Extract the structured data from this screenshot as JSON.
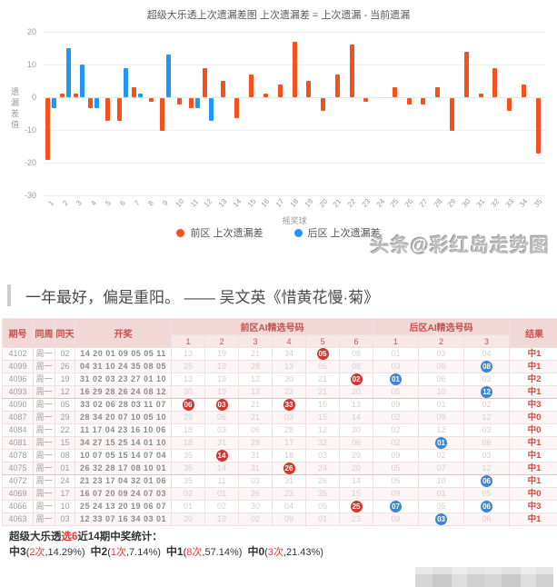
{
  "chart": {
    "title": "超级大乐透上次遗漏差图 上次遗漏差 = 上次遗漏 - 当前遗漏",
    "ylabel": "遗漏差值",
    "xlabel": "摇奖球",
    "watermark": "头条@彩红岛走势图",
    "legend": [
      {
        "label": "前区 上次遗漏差",
        "color": "#f4511e"
      },
      {
        "label": "后区 上次遗漏差",
        "color": "#2196f3"
      }
    ]
  },
  "chart_data": {
    "type": "bar",
    "title": "超级大乐透上次遗漏差图 上次遗漏差 = 上次遗漏 - 当前遗漏",
    "xlabel": "摇奖球",
    "ylabel": "遗漏差值",
    "ylim": [
      -30,
      20
    ],
    "yticks": [
      20,
      10,
      0,
      -10,
      -20,
      -30
    ],
    "grid": true,
    "legend_position": "bottom",
    "categories": [
      "1",
      "2",
      "3",
      "4",
      "5",
      "6",
      "7",
      "8",
      "9",
      "10",
      "11",
      "12",
      "13",
      "14",
      "15",
      "16",
      "17",
      "18",
      "19",
      "20",
      "21",
      "22",
      "23",
      "24",
      "25",
      "26",
      "27",
      "28",
      "29",
      "30",
      "31",
      "32",
      "33",
      "34",
      "35"
    ],
    "series": [
      {
        "name": "前区 上次遗漏差",
        "color": "#f4511e",
        "values": [
          -19,
          1,
          1,
          -3,
          -7,
          -7,
          3,
          -1,
          -10,
          -2,
          -3,
          9,
          5,
          -6,
          7,
          1,
          4,
          17,
          5,
          -4,
          7,
          16,
          -1,
          0,
          3,
          -2,
          -2,
          3,
          -10,
          14,
          1,
          9,
          -4,
          4,
          -17
        ]
      },
      {
        "name": "后区 上次遗漏差",
        "color": "#2196f3",
        "values": [
          -3,
          15,
          10,
          -3,
          0,
          9,
          1,
          0,
          13,
          0,
          -3,
          -7,
          null,
          null,
          null,
          null,
          null,
          null,
          null,
          null,
          null,
          null,
          null,
          null,
          null,
          null,
          null,
          null,
          null,
          null,
          null,
          null,
          null,
          null,
          null
        ]
      }
    ]
  },
  "quote": {
    "text": "一年最好，偏是重阳。 —— 吴文英《惜黄花慢·菊》"
  },
  "table": {
    "headers": {
      "qihao": "期号",
      "tongzhou": "同周",
      "tongtian": "同天",
      "kaijiang": "开奖",
      "front_group": "前区AI精选号码",
      "back_group": "后区AI精选号码",
      "result": "结果",
      "front_cols": [
        "1",
        "2",
        "3",
        "4",
        "5",
        "6"
      ],
      "back_cols": [
        "1",
        "2",
        "3"
      ]
    },
    "rows": [
      {
        "qihao": "4102",
        "week": "周一",
        "day": "02",
        "draw": "14 20 01 09 05 05 11",
        "front": [
          "13",
          "19",
          "21",
          "34",
          {
            "v": "05",
            "hit": "front"
          },
          "08"
        ],
        "back": [
          "01",
          "03",
          "04"
        ],
        "result": "中1"
      },
      {
        "qihao": "4099",
        "week": "周一",
        "day": "26",
        "draw": "04 31 10 24 35 08 05",
        "front": [
          "25",
          "19",
          "28",
          "13",
          "05",
          "08"
        ],
        "back": [
          "03",
          "06",
          {
            "v": "08",
            "hit": "back"
          }
        ],
        "result": "中1"
      },
      {
        "qihao": "4096",
        "week": "周一",
        "day": "19",
        "draw": "31 02 03 23 27 01 10",
        "front": [
          "13",
          "19",
          "12",
          "30",
          "21",
          {
            "v": "02",
            "hit": "front"
          }
        ],
        "back": [
          {
            "v": "01",
            "hit": "back"
          },
          "06",
          "03"
        ],
        "result": "中2"
      },
      {
        "qihao": "4093",
        "week": "周一",
        "day": "12",
        "draw": "16 29 28 26 24 08 12",
        "front": [
          "30",
          "19",
          "13",
          "22",
          "21",
          "20"
        ],
        "back": [
          "05",
          "10",
          {
            "v": "12",
            "hit": "back"
          }
        ],
        "result": "中1"
      },
      {
        "qihao": "4090",
        "week": "周一",
        "day": "05",
        "draw": "33 02 06 28 03 11 07",
        "front": [
          {
            "v": "06",
            "hit": "front"
          },
          {
            "v": "03",
            "hit": "front"
          },
          "21",
          {
            "v": "33",
            "hit": "front"
          },
          "16",
          "13"
        ],
        "back": [
          "09",
          "01",
          "02"
        ],
        "result": "中3"
      },
      {
        "qihao": "4087",
        "week": "周一",
        "day": "29",
        "draw": "28 34 20 07 10 05 10",
        "front": [
          "29",
          "06",
          "21",
          "03",
          "15",
          "14"
        ],
        "back": [
          "02",
          "09",
          "12"
        ],
        "result": "中0"
      },
      {
        "qihao": "4084",
        "week": "周一",
        "day": "22",
        "draw": "11 17 04 23 16 10 06",
        "front": [
          "18",
          "03",
          "06",
          "28",
          "12",
          "30"
        ],
        "back": [
          "02",
          "12",
          "03"
        ],
        "result": "中0"
      },
      {
        "qihao": "4081",
        "week": "周一",
        "day": "15",
        "draw": "34 27 15 25 14 01 10",
        "front": [
          "18",
          "31",
          "29",
          "17",
          "32",
          "06"
        ],
        "back": [
          "02",
          {
            "v": "01",
            "hit": "back"
          },
          "06"
        ],
        "result": "中1"
      },
      {
        "qihao": "4078",
        "week": "周一",
        "day": "08",
        "draw": "10 07 05 15 14 07 04",
        "front": [
          "35",
          {
            "v": "14",
            "hit": "front"
          },
          "31",
          "18",
          "03",
          "29"
        ],
        "back": [
          "09",
          "02",
          "03"
        ],
        "result": "中1"
      },
      {
        "qihao": "4075",
        "week": "周一",
        "day": "01",
        "draw": "26 32 28 17 08 10 01",
        "front": [
          "35",
          "14",
          "31",
          {
            "v": "26",
            "hit": "front"
          },
          "24",
          "20"
        ],
        "back": [
          "05",
          "07",
          "12"
        ],
        "result": "中1"
      },
      {
        "qihao": "4072",
        "week": "周一",
        "day": "24",
        "draw": "21 23 17 04 32 01 06",
        "front": [
          "35",
          "11",
          "03",
          "31",
          "26",
          "14"
        ],
        "back": [
          "05",
          "10",
          {
            "v": "06",
            "hit": "back"
          }
        ],
        "result": "中1"
      },
      {
        "qihao": "4069",
        "week": "周一",
        "day": "17",
        "draw": "16 07 20 09 24 07 03",
        "front": [
          "02",
          "01",
          "26",
          "23",
          "35",
          "15"
        ],
        "back": [
          "09",
          "01",
          "05"
        ],
        "result": "中0"
      },
      {
        "qihao": "4066",
        "week": "周一",
        "day": "10",
        "draw": "25 24 13 20 19 06 07",
        "front": [
          "01",
          "02",
          "30",
          "04",
          "05",
          {
            "v": "25",
            "hit": "front"
          }
        ],
        "back": [
          {
            "v": "07",
            "hit": "back"
          },
          "05",
          {
            "v": "06",
            "hit": "back"
          }
        ],
        "result": "中3"
      },
      {
        "qihao": "4063",
        "week": "周一",
        "day": "03",
        "draw": "12 33 07 16 34 03 01",
        "front": [
          "20",
          "19",
          "02",
          "09",
          "01",
          "23"
        ],
        "back": [
          "09",
          {
            "v": "03",
            "hit": "back"
          },
          "06"
        ],
        "result": "中1"
      }
    ]
  },
  "summary": {
    "title_prefix": "超级大乐透",
    "title_highlight": "选6",
    "title_suffix": "近14期中奖统计：",
    "stats": [
      {
        "label": "中3",
        "count": "2次",
        "pct": "14.29%"
      },
      {
        "label": "中2",
        "count": "1次",
        "pct": "7.14%"
      },
      {
        "label": "中1",
        "count": "8次",
        "pct": "57.14%"
      },
      {
        "label": "中0",
        "count": "3次",
        "pct": "21.43%"
      }
    ]
  },
  "colors": {
    "front_bar": "#f4511e",
    "back_bar": "#2196f3",
    "hit_front_circle": "#ce3732",
    "hit_back_circle": "#3a87d2",
    "header_text": "#c5514e",
    "header_bg": "#f2d7d7",
    "result_text": "#e23b36"
  }
}
